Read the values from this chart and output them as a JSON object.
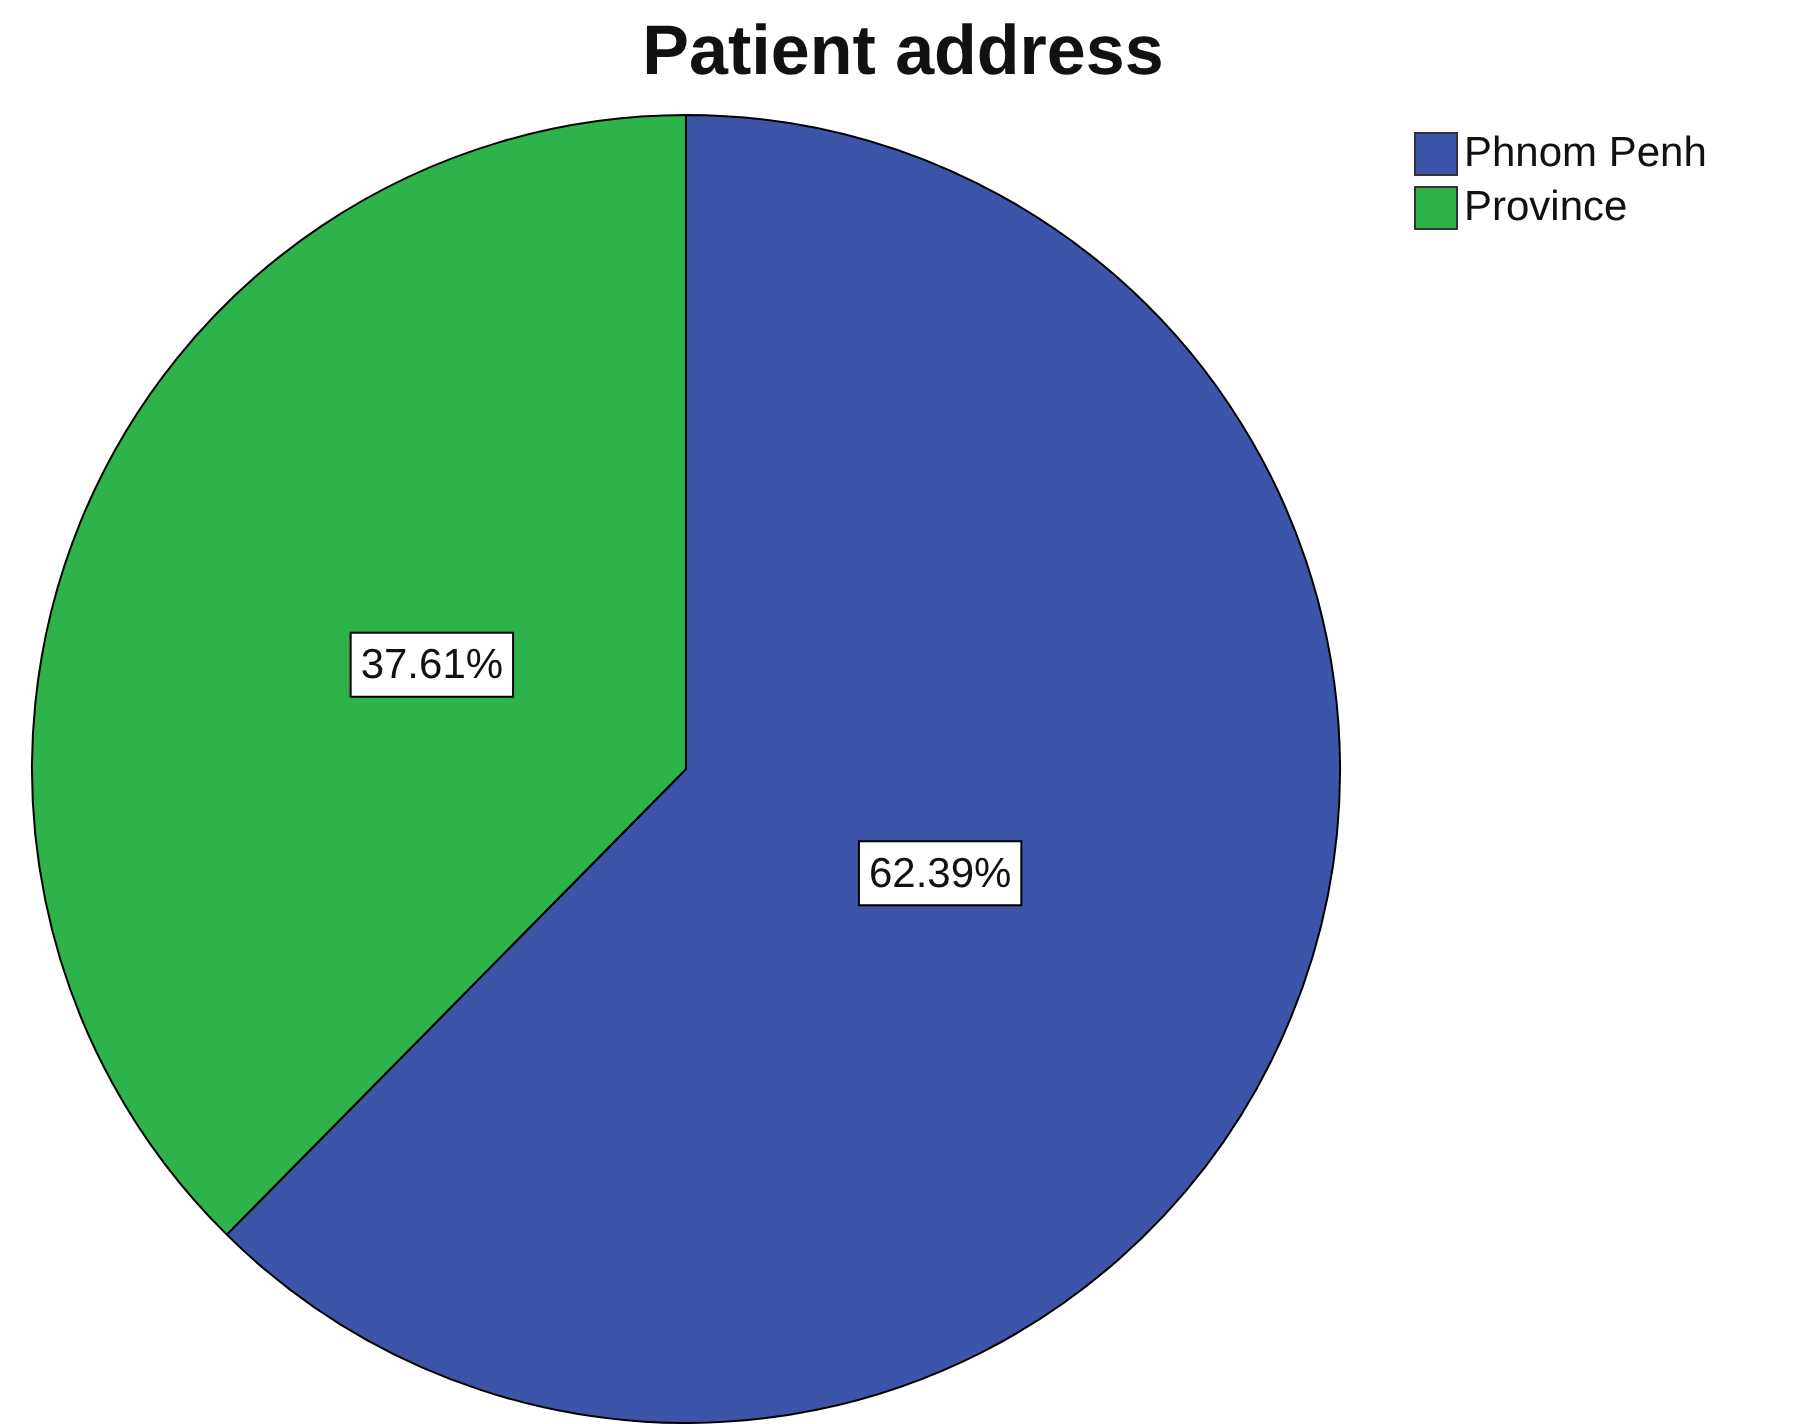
{
  "chart_data": {
    "type": "pie",
    "title": "Patient address",
    "categories": [
      "Phnom Penh",
      "Province"
    ],
    "values": [
      62.39,
      37.61
    ],
    "value_labels": [
      "62.39%",
      "37.61%"
    ],
    "colors": [
      "#3d55a8",
      "#2db34a"
    ],
    "legend": "top right"
  }
}
